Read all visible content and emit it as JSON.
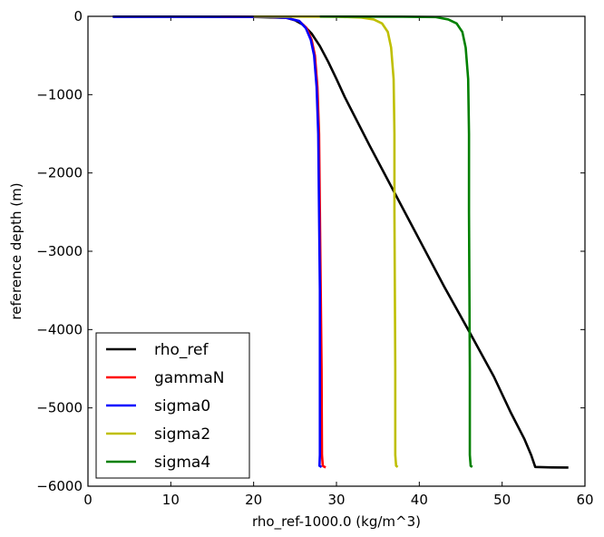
{
  "chart_data": {
    "type": "line",
    "title": "",
    "xlabel": "rho_ref-1000.0 (kg/m^3)",
    "ylabel": "reference depth (m)",
    "xlim": [
      0,
      60
    ],
    "ylim": [
      -6000,
      0
    ],
    "x_ticks": [
      0,
      10,
      20,
      30,
      40,
      50,
      60
    ],
    "y_ticks": [
      0,
      -1000,
      -2000,
      -3000,
      -4000,
      -5000,
      -6000
    ],
    "x_tick_labels": [
      "0",
      "10",
      "20",
      "30",
      "40",
      "50",
      "60"
    ],
    "y_tick_labels": [
      "0",
      "−1000",
      "−2000",
      "−3000",
      "−4000",
      "−5000",
      "−6000"
    ],
    "grid": false,
    "legend_position": "lower-left",
    "series": [
      {
        "name": "rho_ref",
        "color": "#000000",
        "points": [
          [
            3,
            -5
          ],
          [
            10,
            -5
          ],
          [
            20,
            -8
          ],
          [
            24,
            -20
          ],
          [
            25,
            -50
          ],
          [
            26,
            -110
          ],
          [
            27,
            -220
          ],
          [
            28,
            -380
          ],
          [
            29,
            -580
          ],
          [
            30,
            -800
          ],
          [
            31,
            -1030
          ],
          [
            34,
            -1650
          ],
          [
            37,
            -2250
          ],
          [
            40,
            -2850
          ],
          [
            43,
            -3450
          ],
          [
            46,
            -4020
          ],
          [
            49,
            -4600
          ],
          [
            51,
            -5050
          ],
          [
            52.7,
            -5400
          ],
          [
            53.5,
            -5600
          ],
          [
            54,
            -5755
          ],
          [
            56,
            -5760
          ],
          [
            58,
            -5762
          ]
        ]
      },
      {
        "name": "gammaN",
        "color": "#ff0000",
        "points": [
          [
            16,
            -5
          ],
          [
            22,
            -8
          ],
          [
            24,
            -20
          ],
          [
            25.5,
            -60
          ],
          [
            26.4,
            -150
          ],
          [
            27,
            -300
          ],
          [
            27.4,
            -500
          ],
          [
            27.7,
            -900
          ],
          [
            27.9,
            -1500
          ],
          [
            28.0,
            -2500
          ],
          [
            28.1,
            -3500
          ],
          [
            28.2,
            -4500
          ],
          [
            28.25,
            -5600
          ],
          [
            28.35,
            -5740
          ],
          [
            28.5,
            -5750
          ],
          [
            28.7,
            -5760
          ]
        ]
      },
      {
        "name": "sigma0",
        "color": "#0000ff",
        "points": [
          [
            3,
            -5
          ],
          [
            10,
            -5
          ],
          [
            16,
            -5
          ],
          [
            22,
            -8
          ],
          [
            24,
            -20
          ],
          [
            25.5,
            -60
          ],
          [
            26.3,
            -150
          ],
          [
            26.9,
            -300
          ],
          [
            27.3,
            -500
          ],
          [
            27.6,
            -900
          ],
          [
            27.8,
            -1500
          ],
          [
            27.9,
            -2500
          ],
          [
            28.0,
            -3500
          ],
          [
            28.0,
            -4500
          ],
          [
            28.0,
            -5600
          ],
          [
            27.95,
            -5740
          ],
          [
            28.2,
            -5755
          ]
        ]
      },
      {
        "name": "sigma2",
        "color": "#bfbf00",
        "points": [
          [
            20,
            -3
          ],
          [
            30,
            -5
          ],
          [
            33,
            -15
          ],
          [
            34.5,
            -40
          ],
          [
            35.5,
            -90
          ],
          [
            36.2,
            -200
          ],
          [
            36.6,
            -400
          ],
          [
            36.9,
            -800
          ],
          [
            37.0,
            -1500
          ],
          [
            37.0,
            -2500
          ],
          [
            37.05,
            -3500
          ],
          [
            37.1,
            -4500
          ],
          [
            37.1,
            -5600
          ],
          [
            37.2,
            -5740
          ],
          [
            37.4,
            -5755
          ]
        ]
      },
      {
        "name": "sigma4",
        "color": "#008000",
        "points": [
          [
            28,
            -3
          ],
          [
            38,
            -5
          ],
          [
            42,
            -10
          ],
          [
            43.5,
            -40
          ],
          [
            44.5,
            -90
          ],
          [
            45.2,
            -200
          ],
          [
            45.6,
            -400
          ],
          [
            45.9,
            -800
          ],
          [
            46.0,
            -1500
          ],
          [
            46.0,
            -2500
          ],
          [
            46.05,
            -3500
          ],
          [
            46.1,
            -4500
          ],
          [
            46.1,
            -5600
          ],
          [
            46.2,
            -5740
          ],
          [
            46.4,
            -5755
          ]
        ]
      }
    ]
  }
}
